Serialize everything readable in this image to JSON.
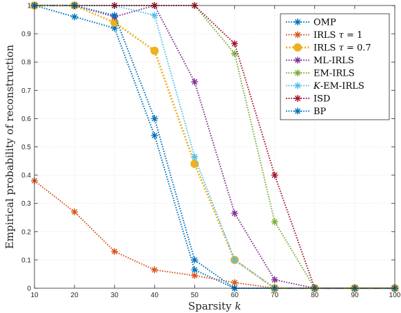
{
  "chart_data": {
    "type": "line",
    "xlabel": "Sparsity k",
    "ylabel": "Empirical probability of reconstruction",
    "xlim": [
      10,
      100
    ],
    "ylim": [
      0,
      1
    ],
    "xticks": [
      10,
      20,
      30,
      40,
      50,
      60,
      70,
      80,
      90,
      100
    ],
    "yticks": [
      0,
      0.1,
      0.2,
      0.3,
      0.4,
      0.5,
      0.6,
      0.7,
      0.8,
      0.9,
      1
    ],
    "grid": true,
    "legend_position": "top-right",
    "x": [
      10,
      20,
      30,
      40,
      50,
      60,
      70,
      80,
      90,
      100
    ],
    "series": [
      {
        "name": "OMP",
        "color": "#0072BD",
        "marker": "asterisk",
        "values": [
          1,
          0.96,
          0.92,
          0.54,
          0.065,
          0,
          0,
          0,
          0,
          0
        ]
      },
      {
        "name": "IRLS τ = 1",
        "color": "#D95319",
        "marker": "asterisk",
        "values": [
          0.38,
          0.27,
          0.13,
          0.065,
          0.045,
          0.02,
          0,
          0,
          0,
          0
        ]
      },
      {
        "name": "IRLS τ = 0.7",
        "color": "#EDB120",
        "marker": "circle",
        "values": [
          1,
          1,
          0.94,
          0.84,
          0.44,
          0.1,
          0,
          0,
          0,
          0
        ]
      },
      {
        "name": "ML-IRLS",
        "color": "#7E2F8E",
        "marker": "asterisk",
        "values": [
          1,
          1,
          0.96,
          1,
          0.73,
          0.265,
          0.03,
          0,
          0,
          0
        ]
      },
      {
        "name": "EM-IRLS",
        "color": "#77AC30",
        "marker": "asterisk",
        "values": [
          1,
          1,
          1,
          1,
          1,
          0.83,
          0.235,
          0,
          0,
          0
        ]
      },
      {
        "name": "K-EM-IRLS",
        "color": "#4DBEEE",
        "marker": "asterisk",
        "values": [
          1,
          1,
          1,
          0.965,
          0.465,
          0.1,
          0,
          0,
          0,
          0
        ]
      },
      {
        "name": "ISD",
        "color": "#A2142F",
        "marker": "asterisk",
        "values": [
          1,
          1,
          1,
          1,
          1,
          0.865,
          0.4,
          0,
          0,
          0
        ]
      },
      {
        "name": "BP",
        "color": "#0072BD",
        "marker": "asterisk",
        "values": [
          1,
          1,
          0.965,
          0.6,
          0.1,
          0,
          0,
          0,
          0,
          0
        ]
      }
    ]
  }
}
